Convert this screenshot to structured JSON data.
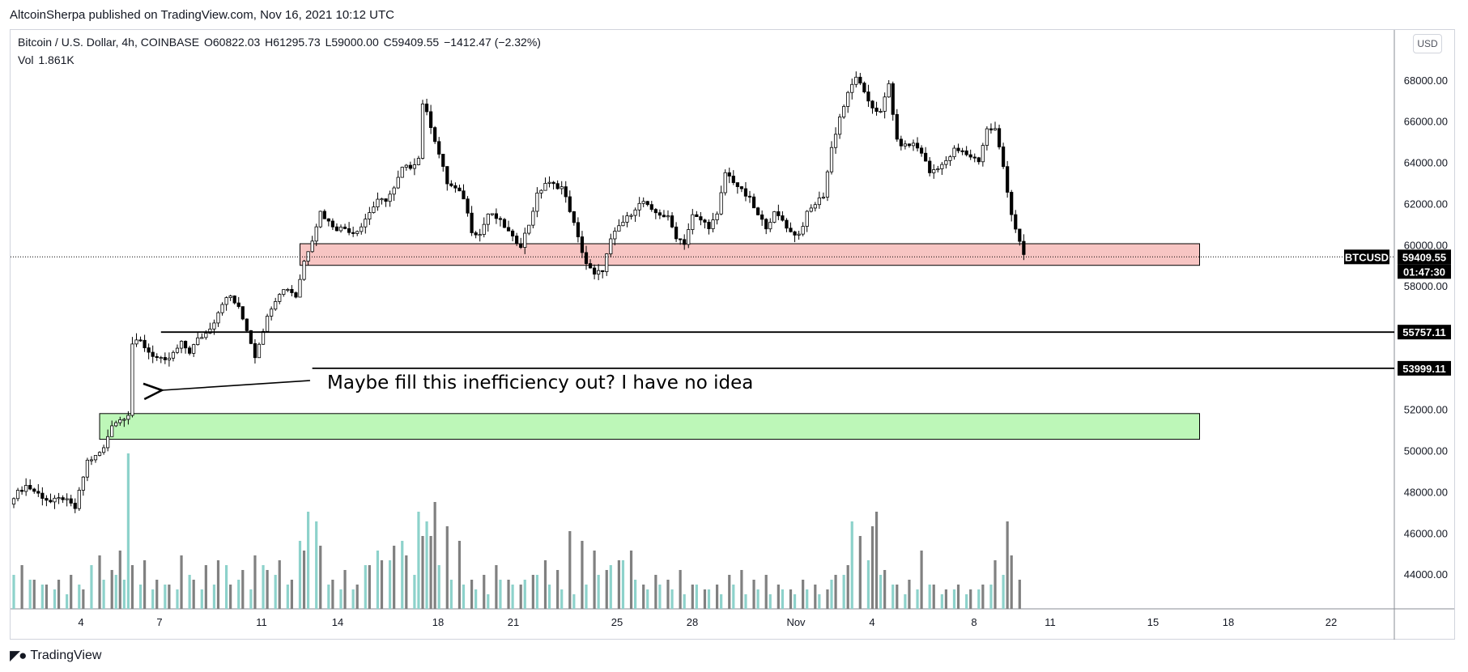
{
  "header": {
    "publisher_text": "AltcoinSherpa published on TradingView.com, Nov 16, 2021 10:12 UTC"
  },
  "legend": {
    "symbol": "Bitcoin / U.S. Dollar, 4h, COINBASE",
    "open": "O60822.03",
    "high": "H61295.73",
    "low": "L59000.00",
    "close": "C59409.55",
    "change": "−1412.47 (−2.32%)",
    "volume_label": "Vol",
    "volume_value": "1.861K"
  },
  "toolbar": {
    "currency": "USD"
  },
  "colors": {
    "candle_body": "#000000",
    "candle_up_fill": "#ffffff",
    "volume_up": "#8dd2cb",
    "volume_down": "#808080",
    "resistance_zone_fill": "#f7c5c3",
    "support_zone_fill": "#bdf7b8",
    "price_label_bg": "#000000"
  },
  "annotation": {
    "text": "Maybe fill this inefficiency out? I have no idea"
  },
  "price_labels": {
    "symbol_tag": "BTCUSD",
    "last_price": "59409.55",
    "countdown": "01:47:30",
    "level_upper": "55757.11",
    "level_lower": "53999.11"
  },
  "footer": {
    "brand": "TradingView"
  },
  "chart_data": {
    "type": "candlestick",
    "title": "Bitcoin / U.S. Dollar, 4h, COINBASE",
    "ylim": [
      42000,
      70000
    ],
    "y_ticks": [
      "44000.00",
      "46000.00",
      "48000.00",
      "50000.00",
      "52000.00",
      "58000.00",
      "60000.00",
      "62000.00",
      "64000.00",
      "66000.00",
      "68000.00"
    ],
    "x_tick_labels": [
      "4",
      "7",
      "11",
      "14",
      "18",
      "21",
      "25",
      "28",
      "Nov",
      "4",
      "8",
      "11",
      "15",
      "18",
      "22"
    ],
    "price_series": [
      [
        0,
        47800
      ],
      [
        3,
        48300
      ],
      [
        6,
        47900
      ],
      [
        9,
        47500
      ],
      [
        12,
        47700
      ],
      [
        15,
        47200
      ],
      [
        18,
        49500
      ],
      [
        20,
        49700
      ],
      [
        22,
        50100
      ],
      [
        24,
        51300
      ],
      [
        26,
        51500
      ],
      [
        28,
        51800
      ],
      [
        29,
        55200
      ],
      [
        31,
        55300
      ],
      [
        33,
        54800
      ],
      [
        35,
        54500
      ],
      [
        37,
        54300
      ],
      [
        39,
        54700
      ],
      [
        41,
        55200
      ],
      [
        43,
        54800
      ],
      [
        45,
        55400
      ],
      [
        47,
        55700
      ],
      [
        49,
        56300
      ],
      [
        51,
        57200
      ],
      [
        53,
        57500
      ],
      [
        55,
        56900
      ],
      [
        57,
        55900
      ],
      [
        59,
        54600
      ],
      [
        61,
        55900
      ],
      [
        63,
        57000
      ],
      [
        65,
        57700
      ],
      [
        67,
        57900
      ],
      [
        69,
        57500
      ],
      [
        71,
        59200
      ],
      [
        73,
        60300
      ],
      [
        75,
        61600
      ],
      [
        77,
        61100
      ],
      [
        79,
        60800
      ],
      [
        81,
        60800
      ],
      [
        83,
        60600
      ],
      [
        85,
        60900
      ],
      [
        87,
        61600
      ],
      [
        89,
        62100
      ],
      [
        91,
        62200
      ],
      [
        93,
        62700
      ],
      [
        95,
        63700
      ],
      [
        97,
        63800
      ],
      [
        99,
        64200
      ],
      [
        100,
        66900
      ],
      [
        102,
        65800
      ],
      [
        104,
        64400
      ],
      [
        106,
        63000
      ],
      [
        108,
        62700
      ],
      [
        110,
        62300
      ],
      [
        112,
        60700
      ],
      [
        114,
        60500
      ],
      [
        116,
        61500
      ],
      [
        118,
        61300
      ],
      [
        120,
        60900
      ],
      [
        122,
        60300
      ],
      [
        124,
        60000
      ],
      [
        126,
        61000
      ],
      [
        128,
        62400
      ],
      [
        130,
        63000
      ],
      [
        132,
        62900
      ],
      [
        134,
        62800
      ],
      [
        136,
        61700
      ],
      [
        138,
        60300
      ],
      [
        140,
        59100
      ],
      [
        142,
        58500
      ],
      [
        144,
        58800
      ],
      [
        146,
        60200
      ],
      [
        148,
        60900
      ],
      [
        150,
        61300
      ],
      [
        152,
        61800
      ],
      [
        154,
        62100
      ],
      [
        156,
        61600
      ],
      [
        158,
        61500
      ],
      [
        160,
        61300
      ],
      [
        162,
        60400
      ],
      [
        164,
        60100
      ],
      [
        166,
        61400
      ],
      [
        168,
        61200
      ],
      [
        170,
        60900
      ],
      [
        172,
        61400
      ],
      [
        174,
        63500
      ],
      [
        176,
        63100
      ],
      [
        178,
        62600
      ],
      [
        180,
        62200
      ],
      [
        182,
        61400
      ],
      [
        184,
        60900
      ],
      [
        186,
        61500
      ],
      [
        188,
        61200
      ],
      [
        190,
        60600
      ],
      [
        192,
        60500
      ],
      [
        194,
        61500
      ],
      [
        196,
        62000
      ],
      [
        198,
        62400
      ],
      [
        200,
        64700
      ],
      [
        202,
        66200
      ],
      [
        204,
        67300
      ],
      [
        206,
        68200
      ],
      [
        208,
        67300
      ],
      [
        210,
        66700
      ],
      [
        212,
        66400
      ],
      [
        214,
        67800
      ],
      [
        216,
        65000
      ],
      [
        218,
        64800
      ],
      [
        220,
        64900
      ],
      [
        222,
        64500
      ],
      [
        224,
        63500
      ],
      [
        226,
        63800
      ],
      [
        228,
        64000
      ],
      [
        230,
        64600
      ],
      [
        232,
        64500
      ],
      [
        234,
        64300
      ],
      [
        236,
        64100
      ],
      [
        238,
        65600
      ],
      [
        240,
        65600
      ],
      [
        242,
        63800
      ],
      [
        244,
        61500
      ],
      [
        246,
        60100
      ],
      [
        247,
        59410
      ]
    ],
    "volume_up": [
      [
        0,
        700
      ],
      [
        4,
        600
      ],
      [
        7,
        500
      ],
      [
        10,
        400
      ],
      [
        13,
        300
      ],
      [
        16,
        500
      ],
      [
        19,
        900
      ],
      [
        22,
        600
      ],
      [
        25,
        700
      ],
      [
        27,
        600
      ],
      [
        28,
        3200
      ],
      [
        31,
        500
      ],
      [
        34,
        400
      ],
      [
        37,
        500
      ],
      [
        40,
        400
      ],
      [
        43,
        700
      ],
      [
        46,
        400
      ],
      [
        49,
        500
      ],
      [
        52,
        900
      ],
      [
        55,
        600
      ],
      [
        58,
        400
      ],
      [
        61,
        900
      ],
      [
        64,
        700
      ],
      [
        67,
        500
      ],
      [
        70,
        1400
      ],
      [
        72,
        2000
      ],
      [
        74,
        1800
      ],
      [
        77,
        500
      ],
      [
        80,
        400
      ],
      [
        83,
        400
      ],
      [
        86,
        900
      ],
      [
        89,
        1200
      ],
      [
        92,
        1000
      ],
      [
        95,
        1400
      ],
      [
        98,
        700
      ],
      [
        99,
        2000
      ],
      [
        101,
        1800
      ],
      [
        104,
        900
      ],
      [
        107,
        600
      ],
      [
        110,
        500
      ],
      [
        113,
        400
      ],
      [
        116,
        300
      ],
      [
        119,
        600
      ],
      [
        122,
        500
      ],
      [
        125,
        600
      ],
      [
        128,
        700
      ],
      [
        131,
        500
      ],
      [
        134,
        400
      ],
      [
        137,
        300
      ],
      [
        140,
        500
      ],
      [
        143,
        700
      ],
      [
        146,
        900
      ],
      [
        149,
        1000
      ],
      [
        152,
        600
      ],
      [
        155,
        400
      ],
      [
        158,
        500
      ],
      [
        161,
        400
      ],
      [
        164,
        300
      ],
      [
        167,
        500
      ],
      [
        170,
        400
      ],
      [
        173,
        300
      ],
      [
        176,
        500
      ],
      [
        179,
        300
      ],
      [
        182,
        400
      ],
      [
        185,
        300
      ],
      [
        188,
        400
      ],
      [
        191,
        300
      ],
      [
        194,
        400
      ],
      [
        197,
        300
      ],
      [
        200,
        600
      ],
      [
        203,
        700
      ],
      [
        205,
        1800
      ],
      [
        207,
        800
      ],
      [
        209,
        1000
      ],
      [
        212,
        700
      ],
      [
        215,
        500
      ],
      [
        218,
        300
      ],
      [
        221,
        400
      ],
      [
        224,
        500
      ],
      [
        227,
        300
      ],
      [
        230,
        400
      ],
      [
        233,
        300
      ],
      [
        236,
        400
      ],
      [
        239,
        500
      ],
      [
        242,
        700
      ]
    ],
    "volume_down": [
      [
        2,
        900
      ],
      [
        5,
        600
      ],
      [
        8,
        500
      ],
      [
        11,
        600
      ],
      [
        14,
        700
      ],
      [
        17,
        400
      ],
      [
        21,
        1100
      ],
      [
        24,
        800
      ],
      [
        26,
        1200
      ],
      [
        29,
        900
      ],
      [
        32,
        1000
      ],
      [
        35,
        600
      ],
      [
        38,
        500
      ],
      [
        41,
        1100
      ],
      [
        44,
        600
      ],
      [
        47,
        900
      ],
      [
        50,
        1000
      ],
      [
        53,
        500
      ],
      [
        56,
        800
      ],
      [
        59,
        1100
      ],
      [
        62,
        800
      ],
      [
        65,
        1000
      ],
      [
        68,
        600
      ],
      [
        71,
        1200
      ],
      [
        75,
        1300
      ],
      [
        78,
        600
      ],
      [
        81,
        800
      ],
      [
        84,
        500
      ],
      [
        87,
        900
      ],
      [
        90,
        1000
      ],
      [
        93,
        1300
      ],
      [
        96,
        1100
      ],
      [
        100,
        1500
      ],
      [
        102,
        1500
      ],
      [
        103,
        2200
      ],
      [
        106,
        1700
      ],
      [
        109,
        1400
      ],
      [
        112,
        600
      ],
      [
        115,
        700
      ],
      [
        118,
        900
      ],
      [
        121,
        600
      ],
      [
        124,
        500
      ],
      [
        127,
        700
      ],
      [
        130,
        1000
      ],
      [
        133,
        800
      ],
      [
        136,
        1600
      ],
      [
        139,
        1400
      ],
      [
        142,
        1200
      ],
      [
        145,
        800
      ],
      [
        148,
        1000
      ],
      [
        151,
        1200
      ],
      [
        154,
        500
      ],
      [
        157,
        700
      ],
      [
        160,
        600
      ],
      [
        163,
        800
      ],
      [
        166,
        500
      ],
      [
        169,
        400
      ],
      [
        172,
        500
      ],
      [
        175,
        700
      ],
      [
        178,
        800
      ],
      [
        181,
        600
      ],
      [
        184,
        700
      ],
      [
        187,
        500
      ],
      [
        190,
        400
      ],
      [
        193,
        600
      ],
      [
        196,
        500
      ],
      [
        199,
        400
      ],
      [
        201,
        700
      ],
      [
        204,
        900
      ],
      [
        207,
        1500
      ],
      [
        210,
        1700
      ],
      [
        211,
        2000
      ],
      [
        213,
        800
      ],
      [
        216,
        500
      ],
      [
        219,
        600
      ],
      [
        222,
        1200
      ],
      [
        225,
        500
      ],
      [
        228,
        400
      ],
      [
        231,
        500
      ],
      [
        234,
        400
      ],
      [
        237,
        500
      ],
      [
        240,
        1000
      ],
      [
        243,
        1800
      ],
      [
        244,
        1100
      ],
      [
        246,
        600
      ]
    ],
    "zones": [
      {
        "type": "resistance",
        "from_x": 70,
        "to_x": 290,
        "y_low": 59000,
        "y_high": 60050
      },
      {
        "type": "support",
        "from_x": 21,
        "to_x": 290,
        "y_low": 50550,
        "y_high": 51800
      }
    ],
    "levels": [
      {
        "value": 55757.11,
        "from_x": 36
      },
      {
        "value": 53999.11,
        "from_x": 73
      }
    ],
    "last_price": 59409.55
  }
}
